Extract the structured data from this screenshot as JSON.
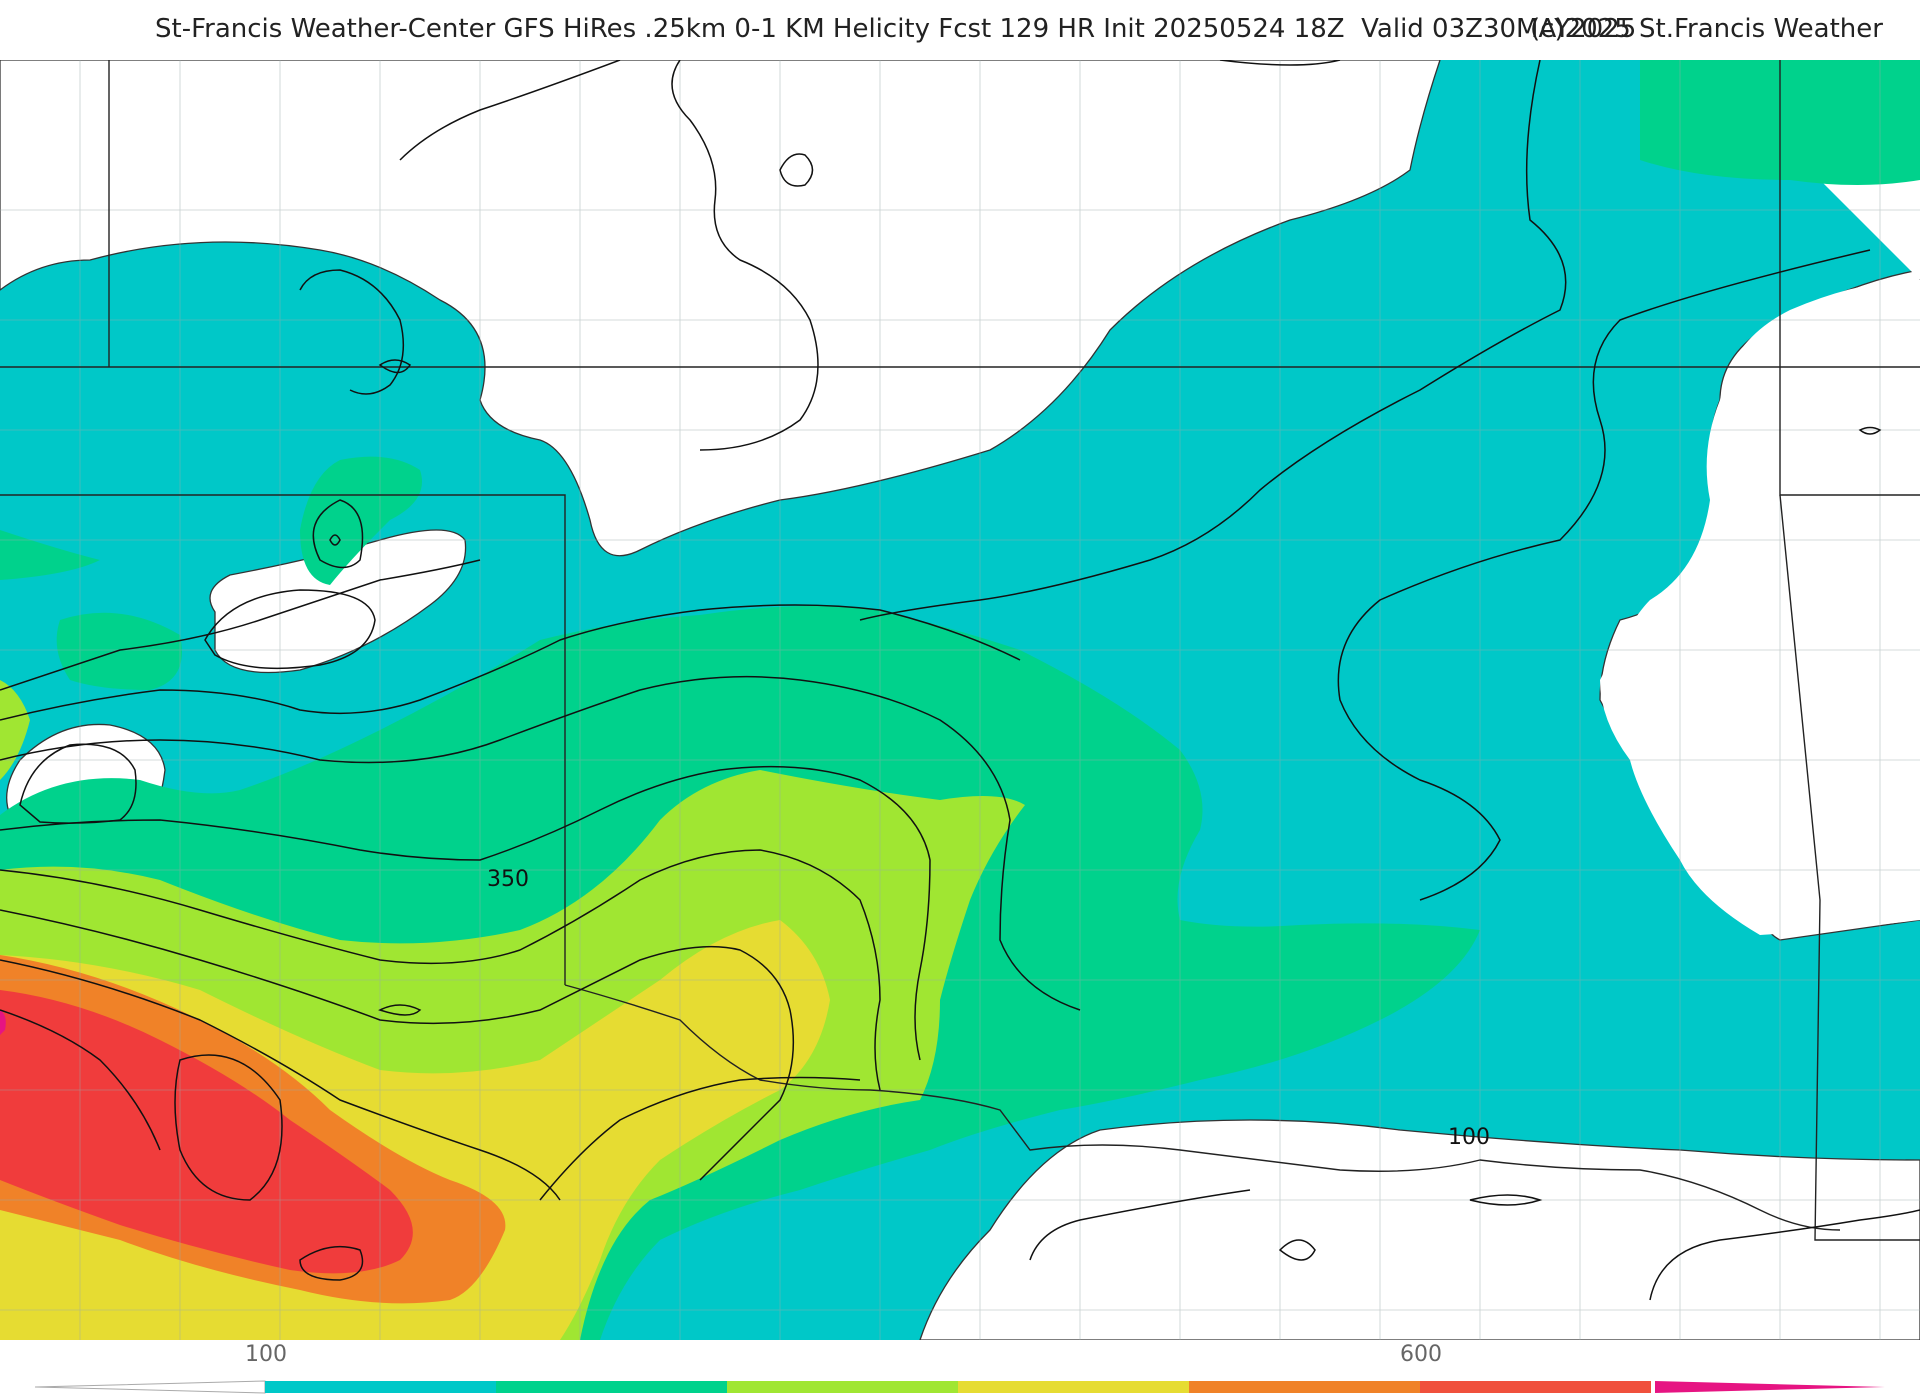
{
  "header": {
    "title": "St-Francis Weather-Center GFS HiRes .25km 0-1 KM Helicity Fcst 129 HR Init 20250524 18Z  Valid 03Z30MAY2025",
    "copyright": "(c)2025 St.Francis Weather"
  },
  "map": {
    "contour_labels": [
      "350",
      "100"
    ]
  },
  "legend": {
    "tick_labels": [
      "100",
      "600"
    ],
    "colors": [
      "#00c8c8",
      "#00d28c",
      "#a0e632",
      "#e6dc32",
      "#f08228",
      "#f0503c",
      "#e61482"
    ]
  }
}
